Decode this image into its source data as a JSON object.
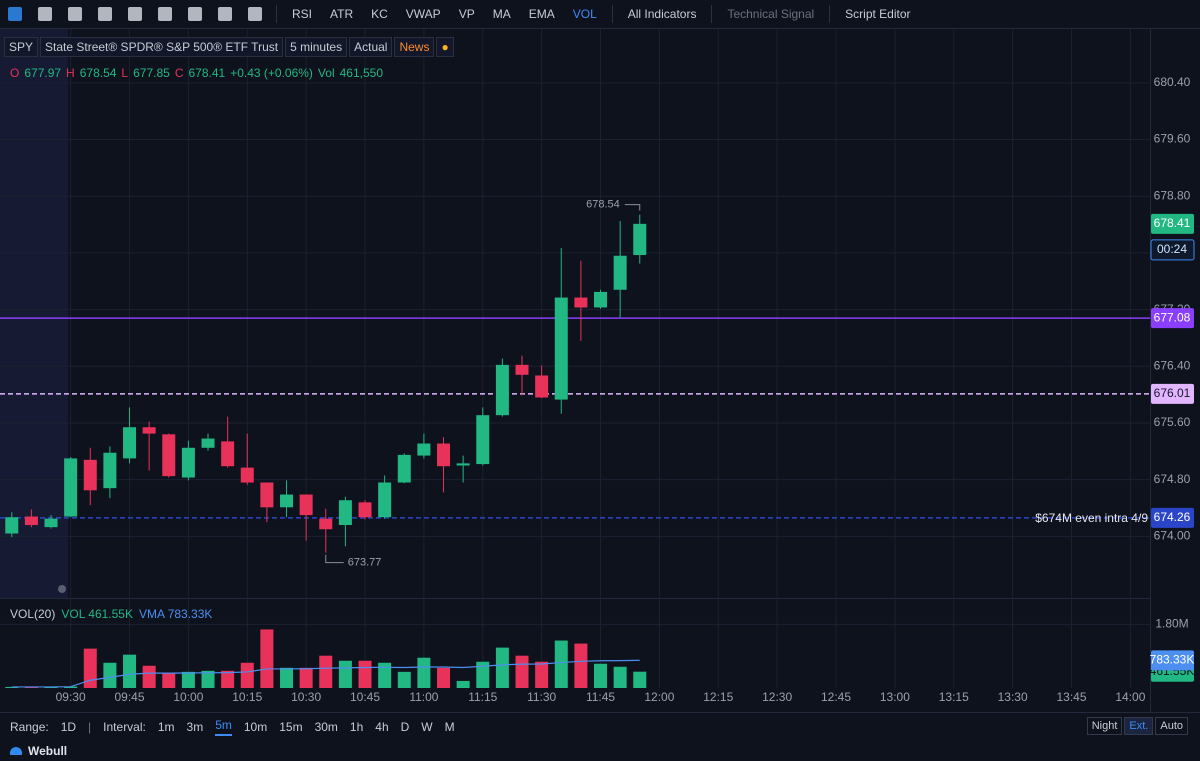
{
  "toolbar": {
    "indicators": [
      "RSI",
      "ATR",
      "KC",
      "VWAP",
      "VP",
      "MA",
      "EMA",
      "VOL"
    ],
    "all_indicators": "All Indicators",
    "technical_signal": "Technical Signal",
    "script_editor": "Script Editor"
  },
  "header": {
    "symbol": "SPY",
    "name": "State Street® SPDR® S&P 500® ETF Trust",
    "timeframe": "5 minutes",
    "mode": "Actual",
    "news": "News"
  },
  "ohlc_legend": {
    "o": "O",
    "h": "H",
    "l": "L",
    "c": "C",
    "change": "+0.43 (+0.06%)",
    "vol_title": "Vol",
    "vol": "461,550"
  },
  "chart_data": [
    {
      "type": "candlestick",
      "x": [
        555,
        560,
        565,
        570,
        575,
        580,
        585,
        590,
        595,
        600,
        605,
        610,
        615,
        620,
        625,
        630,
        635,
        640,
        645,
        650,
        655,
        660,
        665,
        670,
        675,
        680,
        685,
        690,
        695,
        700,
        705,
        710,
        715
      ],
      "open": [
        674.04,
        674.28,
        674.13,
        674.28,
        675.08,
        674.68,
        675.1,
        675.54,
        675.44,
        674.83,
        675.25,
        675.34,
        674.97,
        674.76,
        674.41,
        674.59,
        674.25,
        674.16,
        674.48,
        674.27,
        674.76,
        675.14,
        675.31,
        675.0,
        675.02,
        675.71,
        676.42,
        676.27,
        675.93,
        677.37,
        677.23,
        677.48,
        677.97
      ],
      "high": [
        674.34,
        674.38,
        674.3,
        675.12,
        675.25,
        675.27,
        675.82,
        675.62,
        675.45,
        675.35,
        675.45,
        675.69,
        675.45,
        674.76,
        674.79,
        674.59,
        674.39,
        674.56,
        674.51,
        674.86,
        675.17,
        675.45,
        675.4,
        675.14,
        675.82,
        676.51,
        676.55,
        676.41,
        678.07,
        677.89,
        677.48,
        678.45,
        678.54
      ],
      "low": [
        673.99,
        674.13,
        674.11,
        674.27,
        674.44,
        674.54,
        675.03,
        674.93,
        674.83,
        674.79,
        675.21,
        674.97,
        674.73,
        674.2,
        674.27,
        673.94,
        673.77,
        673.86,
        674.24,
        674.25,
        674.75,
        675.1,
        674.62,
        674.76,
        675.0,
        675.69,
        675.99,
        675.95,
        675.73,
        676.76,
        677.21,
        677.09,
        677.85
      ],
      "close": [
        674.27,
        674.16,
        674.25,
        675.1,
        674.65,
        675.18,
        675.54,
        675.45,
        674.85,
        675.25,
        675.38,
        674.99,
        674.76,
        674.41,
        674.59,
        674.3,
        674.1,
        674.51,
        674.27,
        674.76,
        675.15,
        675.31,
        674.99,
        675.03,
        675.71,
        676.42,
        676.28,
        675.96,
        677.37,
        677.23,
        677.45,
        677.96,
        678.41
      ],
      "up_color": "#22b883",
      "down_color": "#e8325a",
      "xlim": [
        552,
        845
      ],
      "xticks": [
        {
          "value": 570,
          "label": "09:30"
        },
        {
          "value": 585,
          "label": "09:45"
        },
        {
          "value": 600,
          "label": "10:00"
        },
        {
          "value": 615,
          "label": "10:15"
        },
        {
          "value": 630,
          "label": "10:30"
        },
        {
          "value": 645,
          "label": "10:45"
        },
        {
          "value": 660,
          "label": "11:00"
        },
        {
          "value": 675,
          "label": "11:15"
        },
        {
          "value": 690,
          "label": "11:30"
        },
        {
          "value": 705,
          "label": "11:45"
        },
        {
          "value": 720,
          "label": "12:00"
        },
        {
          "value": 735,
          "label": "12:15"
        },
        {
          "value": 750,
          "label": "12:30"
        },
        {
          "value": 765,
          "label": "12:45"
        },
        {
          "value": 780,
          "label": "13:00"
        },
        {
          "value": 795,
          "label": "13:15"
        },
        {
          "value": 810,
          "label": "13:30"
        },
        {
          "value": 825,
          "label": "13:45"
        },
        {
          "value": 840,
          "label": "14:00"
        }
      ],
      "ylim": [
        673.13,
        681.16
      ],
      "yticks": [
        {
          "value": 674.0,
          "label": "674.00"
        },
        {
          "value": 674.8,
          "label": "674.80"
        },
        {
          "value": 675.6,
          "label": "675.60"
        },
        {
          "value": 676.4,
          "label": "676.40"
        },
        {
          "value": 677.2,
          "label": "677.20"
        },
        {
          "value": 678.0,
          "label": "678.00"
        },
        {
          "value": 678.8,
          "label": "678.80"
        },
        {
          "value": 679.6,
          "label": "679.60"
        },
        {
          "value": 680.4,
          "label": "680.40"
        }
      ],
      "grid": true,
      "countdown": "00:24",
      "lines": [
        {
          "value": 677.08,
          "color": "#8a3ffc",
          "style": "solid"
        },
        {
          "value": 676.01,
          "color": "#e2b6ff",
          "style": "dashed"
        },
        {
          "value": 674.26,
          "color": "#2b45c9",
          "style": "dashed",
          "label": "$674M even intra 4/9"
        }
      ]
    },
    {
      "type": "bar",
      "title": "VOL(20)",
      "series": [
        {
          "name": "VOL",
          "values": [
            30000,
            30000,
            30000,
            40000,
            1114000,
            714000,
            943000,
            629000,
            429000,
            457000,
            486000,
            486000,
            714000,
            1657000,
            571000,
            571000,
            914000,
            771000,
            771000,
            714000,
            457000,
            857000,
            571000,
            200000,
            743000,
            1143000,
            914000,
            743000,
            1343000,
            1257000,
            686000,
            600000,
            461550
          ],
          "value_labels": [
            null,
            null,
            null,
            null,
            null,
            null,
            null,
            null,
            null,
            null,
            null,
            null,
            null,
            null,
            null,
            null,
            null,
            null,
            null,
            null,
            null,
            null,
            null,
            null,
            null,
            null,
            null,
            null,
            null,
            null,
            null,
            null,
            "461.55K"
          ]
        },
        {
          "name": "VMA",
          "color": "#4d8ff0",
          "values": [
            30000,
            30000,
            30000,
            37500,
            220000,
            300000,
            390000,
            420000,
            420000,
            425000,
            430000,
            435000,
            455000,
            540000,
            540000,
            545000,
            560000,
            570000,
            580000,
            585000,
            580000,
            595000,
            595000,
            580000,
            615000,
            655000,
            675000,
            680000,
            720000,
            755000,
            770000,
            775000,
            783330
          ],
          "value_labels": [
            null,
            null,
            null,
            null,
            null,
            null,
            null,
            null,
            null,
            null,
            null,
            null,
            null,
            null,
            null,
            null,
            null,
            null,
            null,
            null,
            null,
            null,
            null,
            null,
            null,
            null,
            null,
            null,
            null,
            null,
            null,
            null,
            "783.33K"
          ]
        }
      ],
      "ylim": [
        0,
        2490000
      ],
      "yticks": [
        {
          "value": 1800000,
          "label": "1.80M"
        }
      ]
    }
  ],
  "footer": {
    "range_label": "Range:",
    "range": "1D",
    "interval_label": "Interval:",
    "intervals": [
      "1m",
      "3m",
      "5m",
      "10m",
      "15m",
      "30m",
      "1h",
      "4h",
      "D",
      "W",
      "M"
    ],
    "sessions": [
      "Night",
      "Ext.",
      "Auto"
    ],
    "brand": "Webull"
  }
}
